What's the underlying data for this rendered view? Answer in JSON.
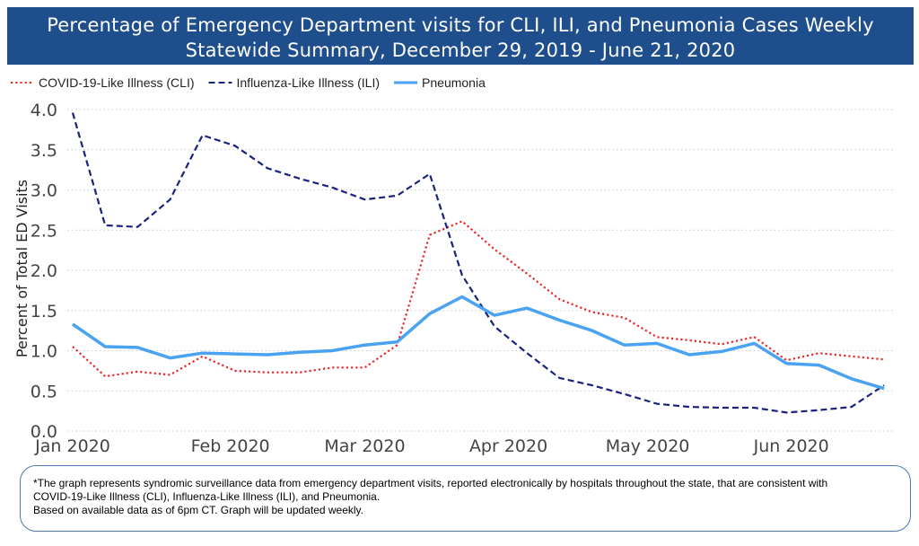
{
  "header": {
    "title_line1": "Percentage of Emergency Department visits for CLI, ILI, and Pneumonia Cases Weekly",
    "title_line2": "Statewide Summary, December 29, 2019 - June 21, 2020",
    "background": "#1f4e8c"
  },
  "chart_data": {
    "type": "line",
    "ylabel": "Percent of Total ED Visits",
    "ylim": [
      0,
      4
    ],
    "yticks": [
      "0.0",
      "0.5",
      "1.0",
      "1.5",
      "2.0",
      "2.5",
      "3.0",
      "3.5",
      "4.0"
    ],
    "xticks": [
      {
        "label": "Jan 2020",
        "date": "2019-12-29"
      },
      {
        "label": "Feb 2020",
        "date": "2020-02-01"
      },
      {
        "label": "Mar 2020",
        "date": "2020-03-01"
      },
      {
        "label": "Apr 2020",
        "date": "2020-04-01"
      },
      {
        "label": "May 2020",
        "date": "2020-05-01"
      },
      {
        "label": "Jun 2020",
        "date": "2020-06-01"
      }
    ],
    "x": [
      "2019-12-29",
      "2020-01-05",
      "2020-01-12",
      "2020-01-19",
      "2020-01-26",
      "2020-02-02",
      "2020-02-09",
      "2020-02-16",
      "2020-02-23",
      "2020-03-01",
      "2020-03-08",
      "2020-03-15",
      "2020-03-22",
      "2020-03-29",
      "2020-04-05",
      "2020-04-12",
      "2020-04-19",
      "2020-04-26",
      "2020-05-03",
      "2020-05-10",
      "2020-05-17",
      "2020-05-24",
      "2020-05-31",
      "2020-06-07",
      "2020-06-14",
      "2020-06-21"
    ],
    "grid": "horizontal dotted",
    "legend_position": "top-left",
    "series": [
      {
        "name": "COVID-19-Like Illness (CLI)",
        "style": "dotted",
        "color": "#e8262a",
        "values": [
          1.05,
          0.68,
          0.74,
          0.7,
          0.93,
          0.75,
          0.73,
          0.73,
          0.79,
          0.79,
          1.07,
          2.44,
          2.61,
          2.26,
          1.96,
          1.64,
          1.48,
          1.41,
          1.17,
          1.13,
          1.08,
          1.17,
          0.88,
          0.97,
          0.93,
          0.89
        ]
      },
      {
        "name": "Influenza-Like Illness (ILI)",
        "style": "dashed",
        "color": "#1a237e",
        "values": [
          3.96,
          2.56,
          2.54,
          2.88,
          3.68,
          3.55,
          3.27,
          3.14,
          3.03,
          2.88,
          2.93,
          3.2,
          1.94,
          1.3,
          0.97,
          0.66,
          0.57,
          0.46,
          0.34,
          0.3,
          0.29,
          0.29,
          0.23,
          0.26,
          0.3,
          0.57
        ]
      },
      {
        "name": "Pneumonia",
        "style": "solid",
        "color": "#4aa3f2",
        "values": [
          1.33,
          1.05,
          1.04,
          0.91,
          0.97,
          0.96,
          0.95,
          0.98,
          1.0,
          1.07,
          1.11,
          1.46,
          1.67,
          1.44,
          1.53,
          1.38,
          1.25,
          1.07,
          1.09,
          0.95,
          0.99,
          1.09,
          0.84,
          0.82,
          0.65,
          0.53
        ]
      }
    ]
  },
  "footnote": {
    "line1": "*The graph represents syndromic surveillance data from emergency department visits, reported electronically by hospitals throughout the state, that are consistent with",
    "line2": "COVID-19-Like Illness (CLI), Influenza-Like Illness (ILI), and Pneumonia.",
    "line3": "Based on available data as of 6pm CT.  Graph will be updated weekly."
  }
}
